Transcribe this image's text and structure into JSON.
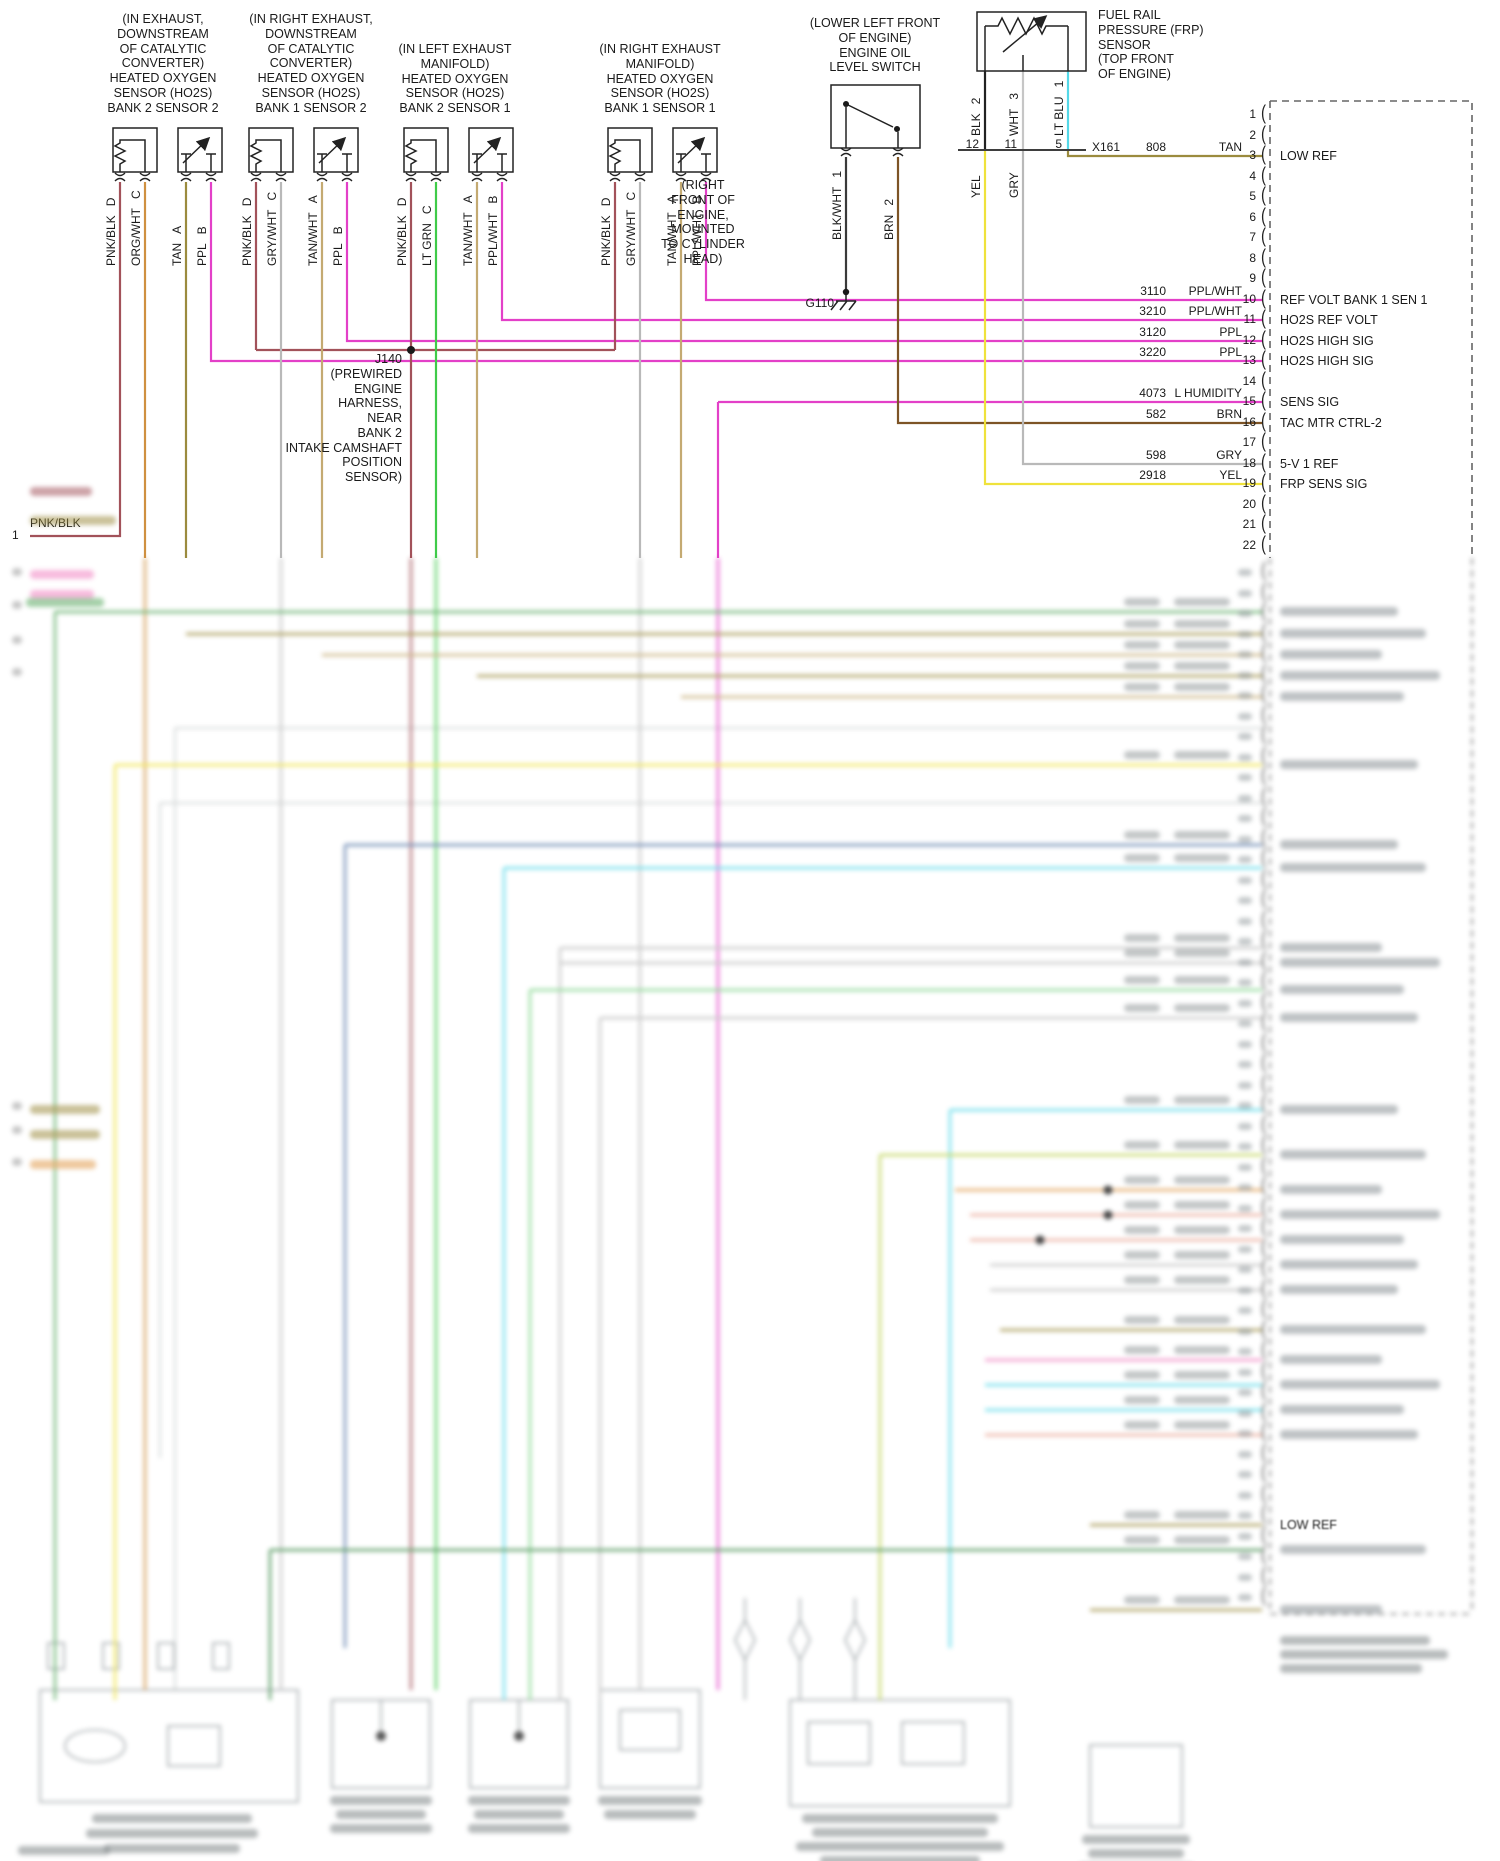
{
  "diagram": {
    "sensors": [
      {
        "title": "(IN EXHAUST,\nDOWNSTREAM\nOF CATALYTIC\nCONVERTER)\nHEATED OXYGEN\nSENSOR (HO2S)\nBANK 2 SENSOR 2",
        "pins": [
          {
            "id": "D",
            "wire": "PNK/BLK"
          },
          {
            "id": "C",
            "wire": "ORG/WHT"
          },
          {
            "id": "A",
            "wire": "TAN"
          },
          {
            "id": "B",
            "wire": "PPL"
          }
        ]
      },
      {
        "title": "(IN RIGHT EXHAUST,\nDOWNSTREAM\nOF CATALYTIC\nCONVERTER)\nHEATED OXYGEN\nSENSOR (HO2S)\nBANK 1 SENSOR 2",
        "pins": [
          {
            "id": "D",
            "wire": "PNK/BLK"
          },
          {
            "id": "C",
            "wire": "GRY/WHT"
          },
          {
            "id": "A",
            "wire": "TAN/WHT"
          },
          {
            "id": "B",
            "wire": "PPL"
          }
        ]
      },
      {
        "title": "(IN LEFT EXHAUST\nMANIFOLD)\nHEATED OXYGEN\nSENSOR (HO2S)\nBANK 2 SENSOR 1",
        "pins": [
          {
            "id": "D",
            "wire": "PNK/BLK"
          },
          {
            "id": "C",
            "wire": "LT GRN"
          },
          {
            "id": "A",
            "wire": "TAN/WHT"
          },
          {
            "id": "B",
            "wire": "PPL/WHT"
          }
        ]
      },
      {
        "title": "(IN RIGHT EXHAUST\nMANIFOLD)\nHEATED OXYGEN\nSENSOR (HO2S)\nBANK 1 SENSOR 1",
        "pins": [
          {
            "id": "D",
            "wire": "PNK/BLK"
          },
          {
            "id": "C",
            "wire": "GRY/WHT"
          },
          {
            "id": "A",
            "wire": "TAN/WHT"
          },
          {
            "id": "B",
            "wire": "PPL/WHT"
          }
        ]
      }
    ],
    "oil_switch": {
      "title": "(LOWER LEFT FRONT\nOF ENGINE)\nENGINE OIL\nLEVEL SWITCH",
      "pins": [
        {
          "id": "1",
          "wire": "BLK/WHT"
        },
        {
          "id": "2",
          "wire": "BRN"
        }
      ]
    },
    "frp_sensor": {
      "title": "FUEL RAIL\nPRESSURE (FRP)\nSENSOR\n(TOP FRONT\nOF ENGINE)",
      "pins": [
        {
          "id": "2",
          "wire": "BLK"
        },
        {
          "id": "3",
          "wire": "WHT"
        },
        {
          "id": "1",
          "wire": "LT BLU"
        }
      ],
      "x161": {
        "label": "X161",
        "pins": [
          "12",
          "11",
          "5"
        ],
        "wires": [
          "YEL",
          "GRY"
        ]
      }
    },
    "ground": {
      "location": "(RIGHT\nFRONT OF\nENGINE,\nMOUNTED\nTO CYLINDER\nHEAD)",
      "id": "G110"
    },
    "splice": {
      "label": "J140\n(PREWIRED\nENGINE\nHARNESS,\nNEAR\nBANK 2\nINTAKE CAMSHAFT\nPOSITION\nSENSOR)"
    },
    "edge": {
      "num": "1",
      "wire": "PNK/BLK"
    },
    "connector": {
      "pins": [
        "1",
        "2",
        "3",
        "4",
        "5",
        "6",
        "7",
        "8",
        "9",
        "10",
        "11",
        "12",
        "13",
        "14",
        "15",
        "16",
        "17",
        "18",
        "19",
        "20",
        "21",
        "22"
      ],
      "rows": [
        {
          "pin": 3,
          "circuit": "808",
          "color": "TAN",
          "label": "LOW REF"
        },
        {
          "pin": 10,
          "circuit": "3110",
          "color": "PPL/WHT",
          "label": "REF VOLT BANK 1 SEN 1"
        },
        {
          "pin": 11,
          "circuit": "3210",
          "color": "PPL/WHT",
          "label": "HO2S REF VOLT"
        },
        {
          "pin": 12,
          "circuit": "3120",
          "color": "PPL",
          "label": "HO2S HIGH SIG"
        },
        {
          "pin": 13,
          "circuit": "3220",
          "color": "PPL",
          "label": "HO2S HIGH SIG"
        },
        {
          "pin": 15,
          "circuit": "4073",
          "color": "L HUMIDITY",
          "label": "SENS SIG"
        },
        {
          "pin": 16,
          "circuit": "582",
          "color": "BRN",
          "label": "TAC MTR CTRL-2"
        },
        {
          "pin": 18,
          "circuit": "598",
          "color": "GRY",
          "label": "5-V 1 REF"
        },
        {
          "pin": 19,
          "circuit": "2918",
          "color": "YEL",
          "label": "FRP SENS SIG"
        }
      ]
    },
    "blurred": {
      "legible_label": "LOW REF"
    },
    "colors": {
      "ppl": "#e340c8",
      "pnk_blk": "#a2525a",
      "tan": "#9b8b3e",
      "tan_wht": "#c4aa72",
      "lt_grn": "#3fcb49",
      "yel": "#efe23c",
      "gry": "#b9b9b9",
      "brn": "#7d5426",
      "lt_blu": "#55d8e8",
      "org_wht": "#cf9040",
      "blk_wht": "#3a3a3a"
    }
  }
}
